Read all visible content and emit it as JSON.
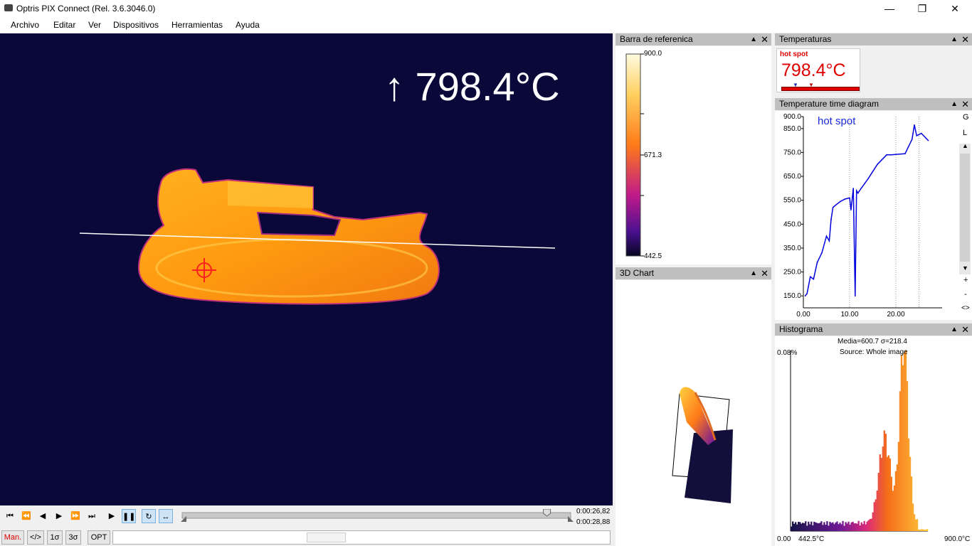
{
  "window": {
    "title": "Optris PIX Connect (Rel. 3.6.3046.0)",
    "minimize_icon": "minimize-icon",
    "maximize_icon": "restore-icon",
    "close_icon": "close-icon"
  },
  "menu": [
    "Archivo",
    "Editar",
    "Ver",
    "Dispositivos",
    "Herramientas",
    "Ayuda"
  ],
  "thermal_view": {
    "max_temp_label": "↑ 798.4°C"
  },
  "playback": {
    "time_current": "0:00:26,82",
    "time_total": "0:00:28,88",
    "position": 0.94,
    "buttons": [
      "first-icon",
      "rewind-icon",
      "step-back-icon",
      "step-forward-icon",
      "fast-forward-icon",
      "last-icon",
      "play-icon",
      "pause-icon",
      "loop-icon",
      "range-icon"
    ]
  },
  "status_buttons": [
    "Man.",
    "</>",
    "1σ",
    "3σ",
    "OPT"
  ],
  "reference_bar": {
    "title": "Barra de referenica",
    "max": "900.0",
    "mid": "671.3",
    "min": "442.5"
  },
  "temperatures": {
    "title": "Temperaturas",
    "label": "hot spot",
    "value": "798.4°C"
  },
  "time_diagram": {
    "title": "Temperature time diagram",
    "series_label": "hot spot",
    "side_buttons": [
      "G",
      "L",
      "+",
      "-",
      "<>"
    ]
  },
  "chart3d": {
    "title": "3D Chart"
  },
  "histogram": {
    "title": "Histograma",
    "stats": "Media=600.7 σ=218.4",
    "source": "Source:  Whole image",
    "y_top": "0.08%",
    "y_bottom": "0.00",
    "x_min": "442.5°C",
    "x_max": "900.0°C"
  },
  "chart_data": {
    "type": "line",
    "series": [
      {
        "name": "hot spot",
        "x": [
          0.4,
          0.8,
          1.5,
          2.2,
          3.0,
          4.0,
          5.0,
          5.6,
          6.0,
          6.4,
          7.0,
          8.0,
          9.0,
          10.0,
          10.3,
          10.8,
          11.2,
          11.5,
          11.8,
          12.5,
          14.0,
          16.0,
          18.0,
          19.0,
          22.0,
          23.5,
          24.0,
          24.5,
          25.5,
          26.5,
          27.0
        ],
        "values": [
          150,
          160,
          230,
          220,
          290,
          330,
          400,
          380,
          470,
          520,
          530,
          545,
          555,
          560,
          510,
          600,
          150,
          590,
          580,
          600,
          640,
          700,
          740,
          740,
          745,
          805,
          865,
          820,
          830,
          810,
          800
        ]
      }
    ],
    "xlabel": "",
    "ylabel": "",
    "xticks": [
      "0.00",
      "10.00",
      "20.00"
    ],
    "yticks": [
      "900.0",
      "850.0",
      "750.0",
      "650.0",
      "550.0",
      "450.0",
      "350.0",
      "250.0",
      "150.0"
    ],
    "xlim": [
      0,
      30
    ],
    "ylim": [
      100,
      900
    ],
    "grid": true
  },
  "colors": {
    "line": "#0000dd",
    "accent_red": "#e00000",
    "panel_header": "#bfbfbf",
    "thermal_bg": "#0a0838"
  }
}
